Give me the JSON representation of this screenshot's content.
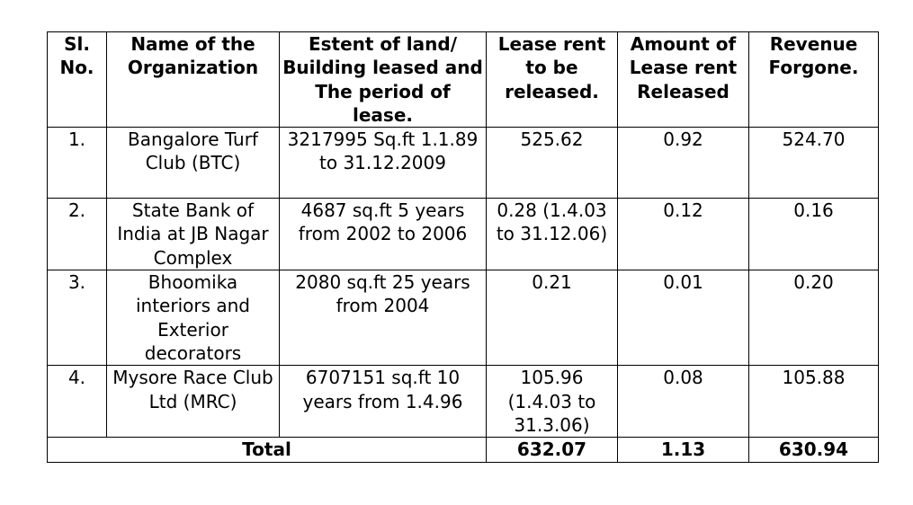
{
  "table": {
    "headers": [
      "Sl. No.",
      "Name of the Organization",
      "Estent of land/ Building leased and The period of lease.",
      "Lease rent to be released.",
      "Amount of Lease rent Released",
      "Revenue Forgone."
    ],
    "rows": [
      {
        "sl": "1.",
        "name": "Bangalore Turf Club (BTC)",
        "extent": "3217995 Sq.ft 1.1.89 to 31.12.2009",
        "lease_rent": "525.62",
        "amount_released": "0.92",
        "revenue_forgone": "524.70"
      },
      {
        "sl": "2.",
        "name": "State Bank of India at JB Nagar Complex",
        "extent": "4687 sq.ft 5 years from 2002 to 2006",
        "lease_rent": "0.28 (1.4.03 to 31.12.06)",
        "amount_released": "0.12",
        "revenue_forgone": "0.16"
      },
      {
        "sl": "3.",
        "name": "Bhoomika interiors and Exterior decorators",
        "extent": "2080 sq.ft 25 years from 2004",
        "lease_rent": "0.21",
        "amount_released": "0.01",
        "revenue_forgone": "0.20"
      },
      {
        "sl": "4.",
        "name": "Mysore Race Club Ltd (MRC)",
        "extent": "6707151 sq.ft 10 years from 1.4.96",
        "lease_rent": "105.96 (1.4.03 to 31.3.06)",
        "amount_released": "0.08",
        "revenue_forgone": "105.88"
      }
    ],
    "total": {
      "label": "Total",
      "lease_rent": "632.07",
      "amount_released": "1.13",
      "revenue_forgone": "630.94"
    }
  }
}
